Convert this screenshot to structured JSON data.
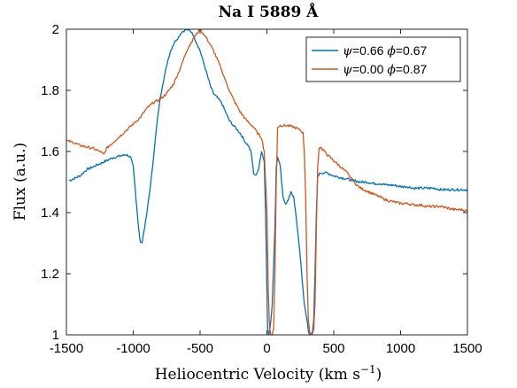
{
  "chart_data": {
    "type": "line",
    "title": "Na I 5889 Å",
    "xlabel": "Heliocentric Velocity (km s",
    "xlabel_sup": "−1",
    "xlabel_end": ")",
    "ylabel": "Flux (a.u.)",
    "xlim": [
      -1500,
      1500
    ],
    "ylim": [
      1,
      2
    ],
    "xticks": [
      -1500,
      -1000,
      -500,
      0,
      500,
      1000,
      1500
    ],
    "yticks": [
      1,
      1.2,
      1.4,
      1.6,
      1.8,
      2
    ],
    "xtick_labels": [
      "-1500",
      "-1000",
      "-500",
      "0",
      "500",
      "1000",
      "1500"
    ],
    "ytick_labels": [
      "1",
      "1.2",
      "1.4",
      "1.6",
      "1.8",
      "2"
    ],
    "legend_position": "top-right",
    "grid": false,
    "series": [
      {
        "name": "ψ=0.66 ϕ=0.67",
        "legend": {
          "sym1": "ψ",
          "val1": "=0.66 ",
          "sym2": "ϕ",
          "val2": "=0.67"
        },
        "color": "#0072BD",
        "x": [
          -1480,
          -1450,
          -1400,
          -1350,
          -1300,
          -1250,
          -1200,
          -1150,
          -1100,
          -1050,
          -1020,
          -1000,
          -990,
          -980,
          -970,
          -960,
          -950,
          -940,
          -930,
          -920,
          -900,
          -880,
          -860,
          -840,
          -820,
          -800,
          -780,
          -760,
          -740,
          -720,
          -700,
          -680,
          -660,
          -640,
          -620,
          -600,
          -580,
          -560,
          -540,
          -520,
          -500,
          -480,
          -460,
          -440,
          -420,
          -400,
          -380,
          -360,
          -340,
          -320,
          -300,
          -280,
          -260,
          -240,
          -220,
          -200,
          -180,
          -160,
          -140,
          -120,
          -110,
          -100,
          -80,
          -60,
          -40,
          -20,
          -10,
          0,
          5,
          15,
          25,
          40,
          60,
          70,
          80,
          90,
          100,
          110,
          120,
          140,
          160,
          180,
          200,
          220,
          240,
          260,
          280,
          300,
          310,
          320,
          340,
          350,
          360,
          370,
          380,
          400,
          450,
          500,
          550,
          600,
          650,
          700,
          750,
          800,
          850,
          900,
          950,
          1000,
          1050,
          1100,
          1150,
          1200,
          1250,
          1300,
          1350,
          1400,
          1450,
          1500
        ],
        "y": [
          1.505,
          1.51,
          1.52,
          1.54,
          1.55,
          1.56,
          1.57,
          1.58,
          1.585,
          1.59,
          1.58,
          1.55,
          1.5,
          1.45,
          1.4,
          1.35,
          1.31,
          1.3,
          1.31,
          1.34,
          1.39,
          1.46,
          1.53,
          1.62,
          1.7,
          1.77,
          1.82,
          1.86,
          1.9,
          1.93,
          1.95,
          1.965,
          1.975,
          1.99,
          1.995,
          2.0,
          1.995,
          1.99,
          1.97,
          1.95,
          1.93,
          1.9,
          1.87,
          1.84,
          1.81,
          1.79,
          1.78,
          1.77,
          1.76,
          1.74,
          1.72,
          1.7,
          1.69,
          1.68,
          1.67,
          1.66,
          1.645,
          1.63,
          1.62,
          1.6,
          1.57,
          1.53,
          1.52,
          1.55,
          1.6,
          1.57,
          1.4,
          1.15,
          1.02,
          1.0,
          1.03,
          1.1,
          1.35,
          1.55,
          1.58,
          1.57,
          1.55,
          1.5,
          1.45,
          1.43,
          1.44,
          1.47,
          1.45,
          1.38,
          1.3,
          1.2,
          1.1,
          1.05,
          1.01,
          1.0,
          1.01,
          1.05,
          1.2,
          1.4,
          1.52,
          1.53,
          1.53,
          1.52,
          1.515,
          1.51,
          1.505,
          1.5,
          1.5,
          1.495,
          1.495,
          1.49,
          1.49,
          1.485,
          1.485,
          1.48,
          1.48,
          1.48,
          1.48,
          1.475,
          1.475,
          1.475,
          1.475,
          1.475
        ]
      },
      {
        "name": "ψ=0.00 ϕ=0.87",
        "legend": {
          "sym1": "ψ",
          "val1": "=0.00 ",
          "sym2": "ϕ",
          "val2": "=0.87"
        },
        "color": "#D95319",
        "x": [
          -1500,
          -1450,
          -1400,
          -1350,
          -1300,
          -1250,
          -1220,
          -1200,
          -1150,
          -1100,
          -1050,
          -1000,
          -950,
          -900,
          -850,
          -800,
          -750,
          -700,
          -650,
          -600,
          -550,
          -500,
          -450,
          -400,
          -350,
          -300,
          -250,
          -200,
          -150,
          -100,
          -70,
          -40,
          -20,
          0,
          10,
          20,
          30,
          40,
          50,
          60,
          70,
          80,
          100,
          150,
          200,
          250,
          270,
          280,
          290,
          300,
          310,
          320,
          330,
          340,
          350,
          360,
          370,
          380,
          390,
          400,
          450,
          500,
          550,
          600,
          650,
          700,
          750,
          800,
          850,
          900,
          950,
          1000,
          1050,
          1100,
          1150,
          1200,
          1250,
          1300,
          1350,
          1400,
          1450,
          1500
        ],
        "y": [
          1.635,
          1.63,
          1.62,
          1.615,
          1.61,
          1.6,
          1.59,
          1.61,
          1.63,
          1.65,
          1.67,
          1.69,
          1.71,
          1.74,
          1.76,
          1.77,
          1.79,
          1.82,
          1.87,
          1.93,
          1.97,
          2.0,
          1.97,
          1.93,
          1.88,
          1.82,
          1.77,
          1.73,
          1.7,
          1.68,
          1.66,
          1.645,
          1.6,
          1.4,
          1.15,
          1.02,
          1.0,
          1.0,
          1.02,
          1.2,
          1.5,
          1.68,
          1.685,
          1.685,
          1.68,
          1.67,
          1.66,
          1.6,
          1.45,
          1.2,
          1.05,
          1.01,
          1.0,
          1.0,
          1.02,
          1.1,
          1.35,
          1.55,
          1.61,
          1.615,
          1.59,
          1.57,
          1.55,
          1.53,
          1.5,
          1.48,
          1.47,
          1.46,
          1.45,
          1.44,
          1.435,
          1.43,
          1.43,
          1.425,
          1.425,
          1.42,
          1.42,
          1.42,
          1.415,
          1.41,
          1.41,
          1.405
        ]
      }
    ]
  }
}
